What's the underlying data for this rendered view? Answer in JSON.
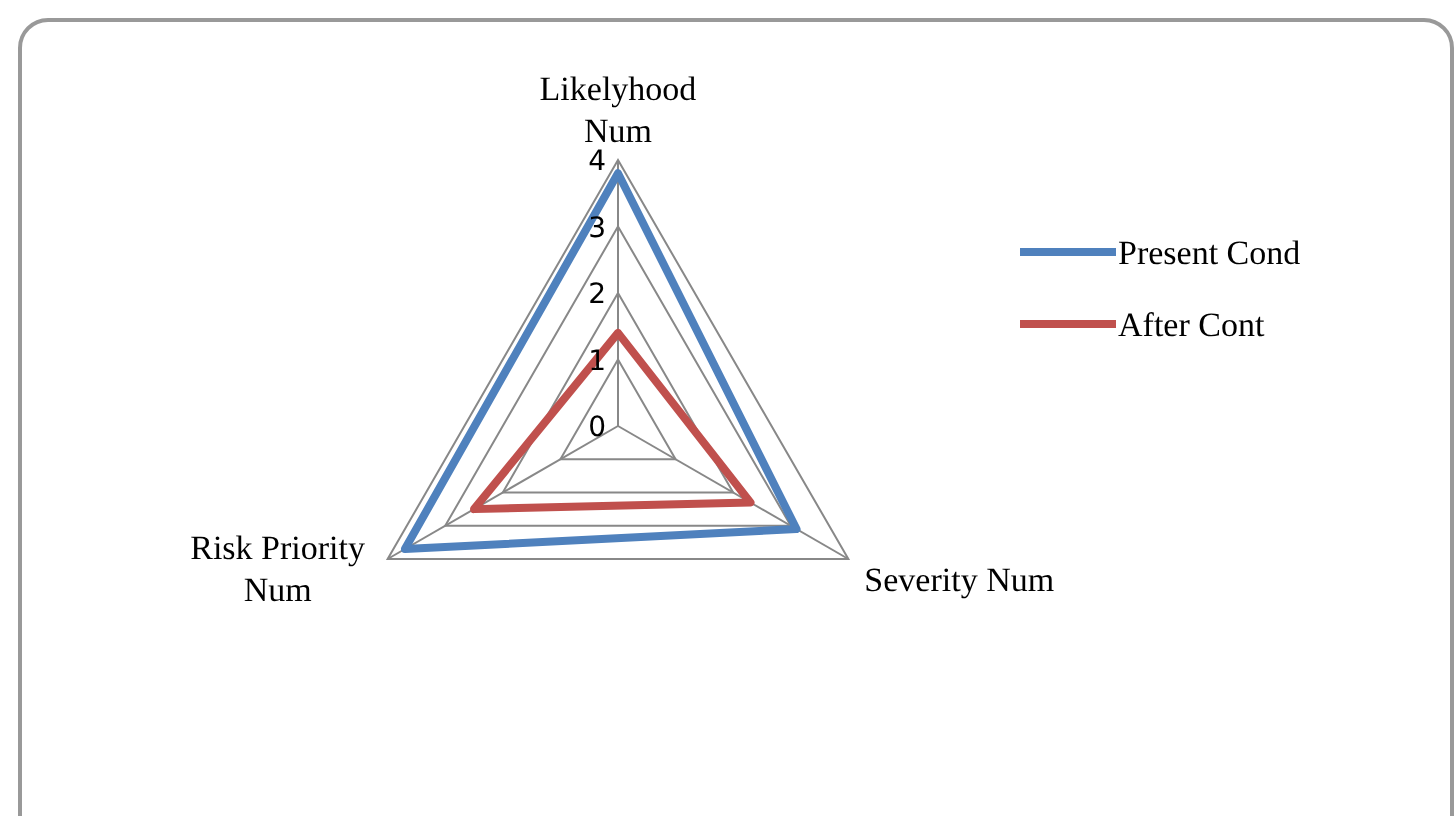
{
  "chart_data": {
    "type": "radar",
    "categories": [
      "Likelyhood Num",
      "Severity Num",
      "Risk Priority Num"
    ],
    "ylim": [
      0,
      4
    ],
    "yticks": [
      0,
      1,
      2,
      3,
      4
    ],
    "legend": "right",
    "series": [
      {
        "name": "Present Cond",
        "color": "#4f81bd",
        "values": [
          3.8,
          3.1,
          3.7
        ]
      },
      {
        "name": "After Cont",
        "color": "#c0504d",
        "values": [
          1.4,
          2.3,
          2.5
        ]
      }
    ]
  }
}
